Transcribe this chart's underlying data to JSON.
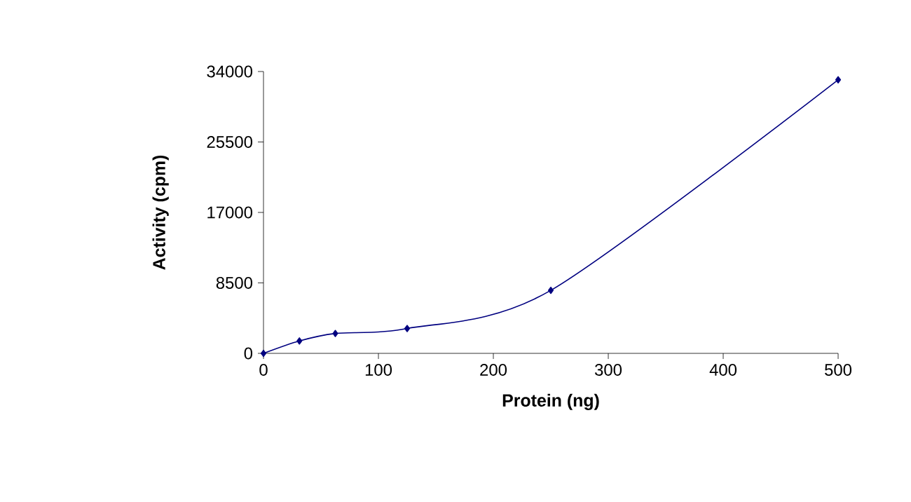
{
  "chart_data": {
    "type": "line",
    "xlabel": "Protein (ng)",
    "ylabel": "Activity (cpm)",
    "x": [
      0,
      31.25,
      62.5,
      125,
      250,
      500
    ],
    "values": [
      0,
      1500,
      2400,
      3000,
      7600,
      33000
    ],
    "color": "#000080",
    "marker": "diamond",
    "line_style": "solid",
    "xlim": [
      0,
      500
    ],
    "ylim": [
      0,
      34000
    ],
    "xticks": [
      0,
      100,
      200,
      300,
      400,
      500
    ],
    "yticks": [
      0,
      8500,
      17000,
      25500,
      34000
    ]
  }
}
